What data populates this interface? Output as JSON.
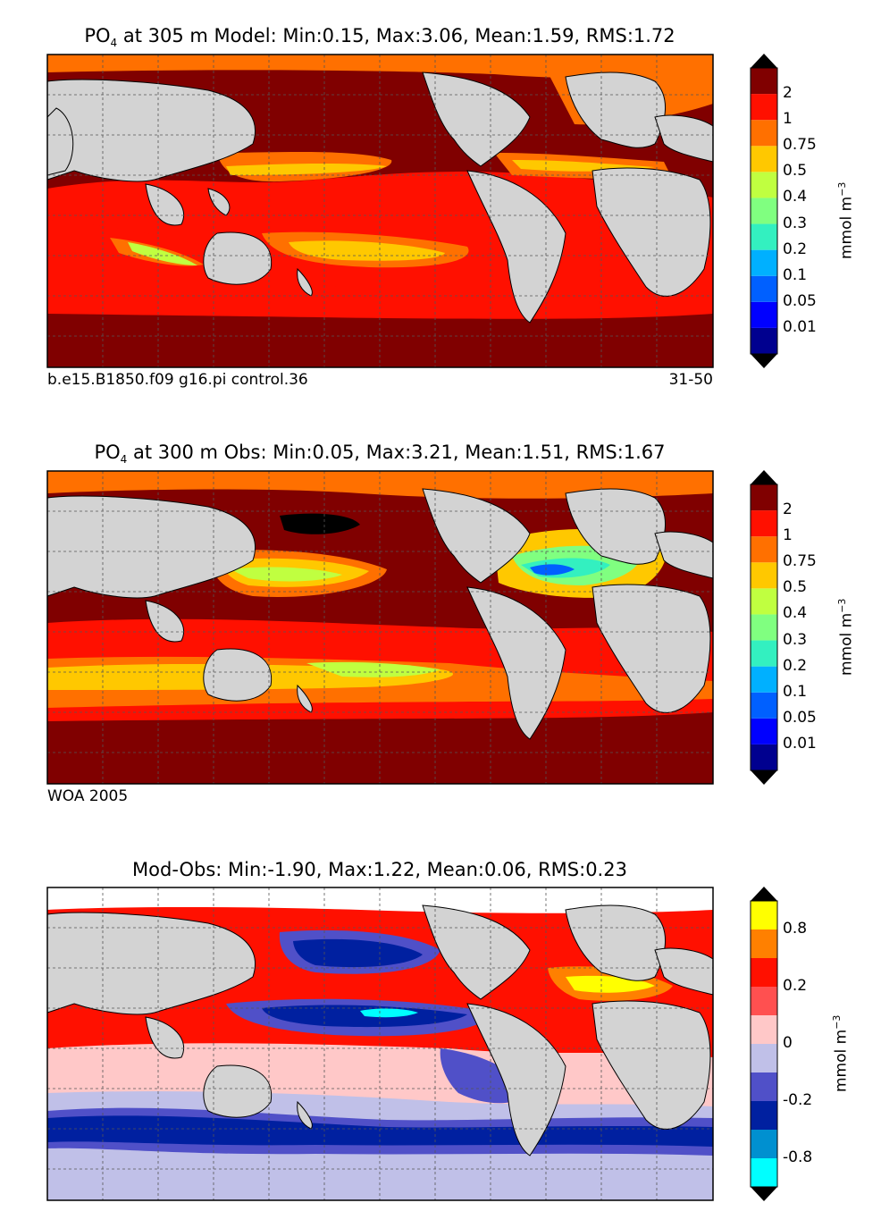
{
  "panels": [
    {
      "title_prefix": "PO",
      "title_sub": "4",
      "title_rest": "at 305 m Model: Min:0.15, Max:3.06, Mean:1.59, RMS:1.72",
      "note_left": "b.e15.B1850.f09 g16.pi control.36",
      "note_right": "31-50",
      "colorbar": {
        "unit": "mmol m",
        "unit_sup": "−3",
        "tick_labels": [
          "0.01",
          "0.05",
          "0.1",
          "0.2",
          "0.3",
          "0.4",
          "0.5",
          "0.75",
          "1",
          "2"
        ],
        "colors": [
          "#00008f",
          "#0000ff",
          "#0060ff",
          "#00b0ff",
          "#33f0c0",
          "#80ff80",
          "#c0ff40",
          "#ffc800",
          "#ff7000",
          "#ff1000",
          "#800000"
        ]
      }
    },
    {
      "title_prefix": "PO",
      "title_sub": "4",
      "title_rest": "at 300 m Obs: Min:0.05, Max:3.21, Mean:1.51, RMS:1.67",
      "note_left": "WOA 2005",
      "note_right": "",
      "colorbar": {
        "unit": "mmol m",
        "unit_sup": "−3",
        "tick_labels": [
          "0.01",
          "0.05",
          "0.1",
          "0.2",
          "0.3",
          "0.4",
          "0.5",
          "0.75",
          "1",
          "2"
        ],
        "colors": [
          "#00008f",
          "#0000ff",
          "#0060ff",
          "#00b0ff",
          "#33f0c0",
          "#80ff80",
          "#c0ff40",
          "#ffc800",
          "#ff7000",
          "#ff1000",
          "#800000"
        ]
      }
    },
    {
      "title_prefix": "",
      "title_sub": "",
      "title_rest": "Mod-Obs: Min:-1.90, Max:1.22, Mean:0.06, RMS:0.23",
      "note_left": "",
      "note_right": "",
      "colorbar": {
        "unit": "mmol m",
        "unit_sup": "−3",
        "tick_labels": [
          "-0.8",
          "-0.2",
          "0",
          "0.2",
          "0.8"
        ],
        "colors": [
          "#00ffff",
          "#0090d0",
          "#0020a0",
          "#5050c8",
          "#c0c0e8",
          "#ffc8c8",
          "#ff5050",
          "#ff1000",
          "#ff8000",
          "#ffff00"
        ]
      }
    }
  ],
  "palette": {
    "land": "#d3d3d3",
    "ice": "#ffffff",
    "grid": "#555555"
  }
}
